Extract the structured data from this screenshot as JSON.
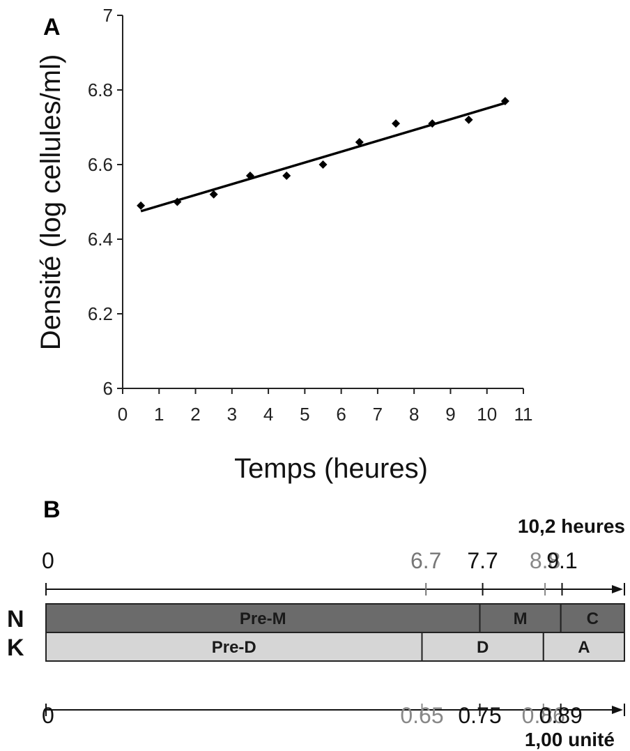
{
  "chart_data": [
    {
      "panel": "A",
      "type": "scatter",
      "xlabel": "Temps (heures)",
      "ylabel": "Densité (log cellules/ml)",
      "xlim": [
        0,
        11
      ],
      "ylim": [
        6,
        7
      ],
      "xticks": [
        "0",
        "1",
        "2",
        "3",
        "4",
        "5",
        "6",
        "7",
        "8",
        "9",
        "10",
        "11"
      ],
      "yticks": [
        "6",
        "6.2",
        "6.4",
        "6.6",
        "6.8",
        "7"
      ],
      "points": [
        {
          "x": 0.5,
          "y": 6.49
        },
        {
          "x": 1.5,
          "y": 6.5
        },
        {
          "x": 2.5,
          "y": 6.52
        },
        {
          "x": 3.5,
          "y": 6.57
        },
        {
          "x": 4.5,
          "y": 6.57
        },
        {
          "x": 5.5,
          "y": 6.6
        },
        {
          "x": 6.5,
          "y": 6.66
        },
        {
          "x": 7.5,
          "y": 6.71
        },
        {
          "x": 8.5,
          "y": 6.71
        },
        {
          "x": 9.5,
          "y": 6.72
        },
        {
          "x": 10.5,
          "y": 6.77
        }
      ],
      "trendline": {
        "x": [
          0.5,
          10.5
        ],
        "y": [
          6.475,
          6.765
        ]
      },
      "grid": false
    },
    {
      "panel": "B",
      "type": "bar",
      "subtype": "stacked-timeline",
      "top_total": "10,2 heures",
      "bottom_total": "1,00 unité",
      "top_scale": [
        {
          "label": "0",
          "value": 0,
          "color": "#111111"
        },
        {
          "label": "6.7",
          "value": 6.7,
          "color": "#777777"
        },
        {
          "label": "7.7",
          "value": 7.7,
          "color": "#111111"
        },
        {
          "label": "8.8",
          "value": 8.8,
          "color": "#888888"
        },
        {
          "label": "9.1",
          "value": 9.1,
          "color": "#111111"
        }
      ],
      "bottom_scale": [
        {
          "label": "0",
          "value": 0,
          "color": "#111111"
        },
        {
          "label": "0.65",
          "value": 0.65,
          "color": "#888888"
        },
        {
          "label": "0.75",
          "value": 0.75,
          "color": "#111111"
        },
        {
          "label": "0.86",
          "value": 0.86,
          "color": "#888888"
        },
        {
          "label": "0.89",
          "value": 0.89,
          "color": "#111111"
        }
      ],
      "rows": [
        {
          "name": "N",
          "color": "#6b6b6b",
          "segments": [
            {
              "label": "Pre-M",
              "start": 0,
              "end": 0.75
            },
            {
              "label": "M",
              "start": 0.75,
              "end": 0.89
            },
            {
              "label": "C",
              "start": 0.89,
              "end": 1.0
            }
          ]
        },
        {
          "name": "K",
          "color": "#d6d6d6",
          "segments": [
            {
              "label": "Pre-D",
              "start": 0,
              "end": 0.65
            },
            {
              "label": "D",
              "start": 0.65,
              "end": 0.86
            },
            {
              "label": "A",
              "start": 0.86,
              "end": 1.0
            }
          ]
        }
      ]
    }
  ]
}
